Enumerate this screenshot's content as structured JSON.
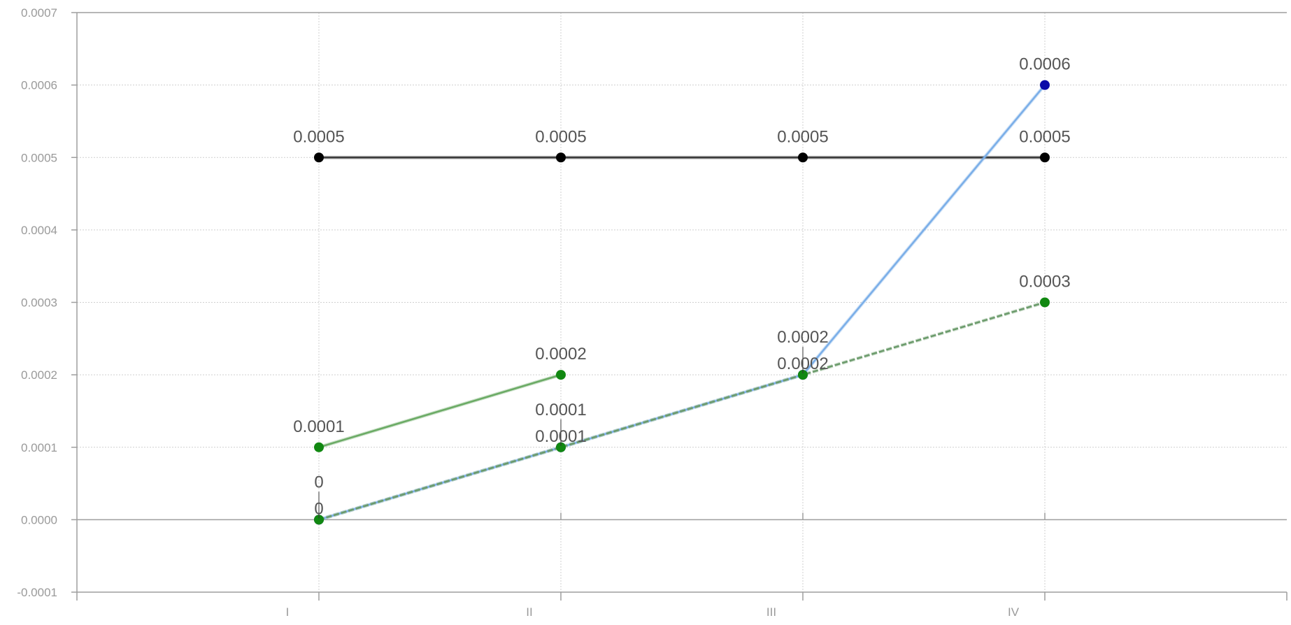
{
  "chart_data": {
    "type": "line",
    "title": "",
    "xlabel": "",
    "ylabel": "",
    "categories": [
      "I",
      "II",
      "III",
      "IV"
    ],
    "ylim": [
      -0.0001,
      0.0007
    ],
    "yticks": [
      "-0.0001",
      "0.0000",
      "0.0001",
      "0.0002",
      "0.0003",
      "0.0004",
      "0.0005",
      "0.0006",
      "0.0007"
    ],
    "ytick_values": [
      -0.0001,
      0,
      0.0001,
      0.0002,
      0.0003,
      0.0004,
      0.0005,
      0.0006,
      0.0007
    ],
    "grid": true,
    "legend": "none",
    "series": [
      {
        "values": [
          0.0005,
          0.0005,
          0.0005,
          0.0005
        ],
        "labels": [
          "0.0005",
          "0.0005",
          "0.0005",
          "0.0005"
        ],
        "color": "#3b3b3b",
        "marker_color": "#000000",
        "style": "solid"
      },
      {
        "values": [
          0.0001,
          0.0002,
          null,
          null
        ],
        "labels": [
          "0.0001",
          "0.0002",
          "",
          ""
        ],
        "color": "#6aaa64",
        "marker_color": "#118811",
        "style": "solid"
      },
      {
        "values": [
          0,
          0.0001,
          0.0002,
          0.0006
        ],
        "labels": [
          "0",
          "0.0001",
          "0.0002",
          "0.0006"
        ],
        "color": "#7aaee8",
        "marker_color": "#0a0aa8",
        "style": "solid"
      },
      {
        "values": [
          0,
          0.0001,
          0.0002,
          0.0003
        ],
        "labels": [
          "0",
          "0.0001",
          "0.0002",
          "0.0003"
        ],
        "color": "#6a9a6a",
        "marker_color": "#118811",
        "style": "dashed"
      }
    ]
  }
}
